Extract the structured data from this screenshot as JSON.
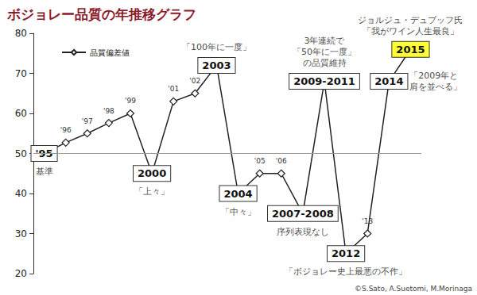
{
  "chart_data": {
    "type": "line",
    "title": "ボジョレー品質の年推移グラフ",
    "caption": "©S.Sato, A.Suetomi, M.Morinaga",
    "categories": [
      "'95",
      "'96",
      "'97",
      "'98",
      "'99",
      "2000",
      "'01",
      "'02",
      "2003",
      "2004",
      "'05",
      "'06",
      "2007-2008",
      "2009-2011",
      "2012",
      "'13",
      "2014",
      "2015"
    ],
    "series": [
      {
        "name": "品質偏差値",
        "color": "#222222",
        "marker": "diamond",
        "values": [
          50,
          52.7,
          55,
          57.6,
          60,
          45,
          63,
          65,
          72,
          40,
          45,
          45,
          35,
          68,
          25,
          30,
          68,
          76
        ]
      }
    ],
    "annotations": [
      {
        "x": "'95",
        "text": "基準"
      },
      {
        "x": "2000",
        "text": "「上々」"
      },
      {
        "x": "2003",
        "text": "「100年に一度」"
      },
      {
        "x": "2004",
        "text": "「中々」"
      },
      {
        "x": "2007-2008",
        "text": "序列表現なし"
      },
      {
        "x": "2009-2011",
        "text": "3年連続で\n「50年に一度」\nの品質維持"
      },
      {
        "x": "2012",
        "text": "「ボジョレー史上最悪の不作」"
      },
      {
        "x": "2014",
        "text": "「2009年と\n肩を並べる」"
      },
      {
        "x": "2015",
        "text": "ジョルジュ・デュブッフ氏\n「我がワイン人生最良」",
        "color": "#ffff33"
      }
    ],
    "reference_line": 50,
    "ylim": [
      20,
      80
    ],
    "yticks": [
      20,
      30,
      40,
      50,
      60,
      70,
      80
    ],
    "grid": false,
    "legend": "upper left",
    "tick_labels": "y"
  }
}
